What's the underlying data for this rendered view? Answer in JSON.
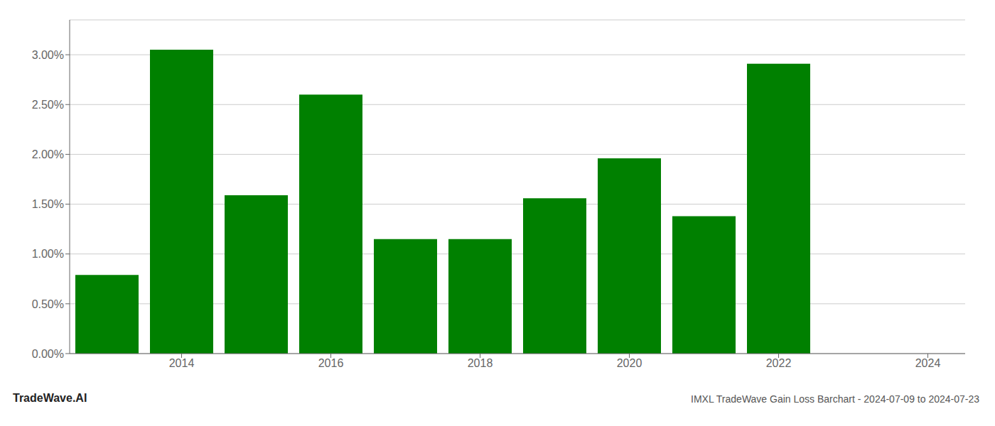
{
  "chart_data": {
    "type": "bar",
    "title": "IMXL TradeWave Gain Loss Barchart - 2024-07-09 to 2024-07-23",
    "annotations": [
      "TradeWave.AI"
    ],
    "x": [
      2013,
      2014,
      2015,
      2016,
      2017,
      2018,
      2019,
      2020,
      2021,
      2022
    ],
    "values": [
      0.0079,
      0.0305,
      0.0159,
      0.026,
      0.0115,
      0.0115,
      0.0156,
      0.0196,
      0.0138,
      0.0291
    ],
    "color": "#008000",
    "xlim": [
      2012.5,
      2024.5
    ],
    "xticks": [
      2014,
      2016,
      2018,
      2020,
      2022,
      2024
    ],
    "ylim": [
      0,
      0.0335
    ],
    "yticks": [
      {
        "value": 0.0,
        "label": "0.00%"
      },
      {
        "value": 0.005,
        "label": "0.50%"
      },
      {
        "value": 0.01,
        "label": "1.00%"
      },
      {
        "value": 0.015,
        "label": "1.50%"
      },
      {
        "value": 0.02,
        "label": "2.00%"
      },
      {
        "value": 0.025,
        "label": "2.50%"
      },
      {
        "value": 0.03,
        "label": "3.00%"
      }
    ],
    "grid": true
  }
}
